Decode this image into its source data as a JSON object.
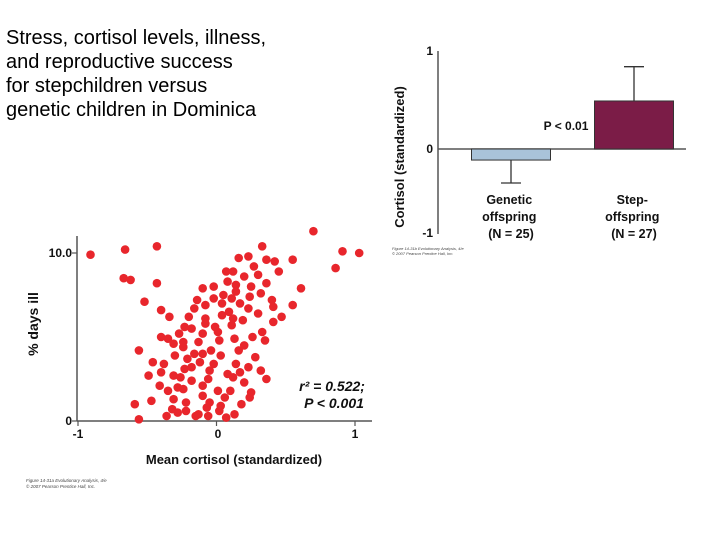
{
  "slide": {
    "title_lines": [
      "Stress, cortisol levels, illness,",
      "and reproductive success",
      "for stepchildren versus",
      "genetic children in Dominica"
    ]
  },
  "colors": {
    "scatter_point": "#e8262c",
    "genetic_bar": "#a9c3d9",
    "step_bar": "#7b1c47",
    "axis": "#555555"
  },
  "chart_data": [
    {
      "type": "bar",
      "categories": [
        "Genetic offspring (N = 25)",
        "Step-offspring (N = 27)"
      ],
      "category_lines": [
        [
          "Genetic",
          "offspring",
          "(N = 25)"
        ],
        [
          "Step-",
          "offspring",
          "(N = 27)"
        ]
      ],
      "values": [
        -0.13,
        0.49
      ],
      "error_bars": [
        [
          -0.4,
          -0.13
        ],
        [
          0.49,
          0.84
        ]
      ],
      "ylabel": "Cortisol (standardized)",
      "ylim": [
        -1,
        1
      ],
      "yticks": [
        "1",
        "0",
        "-1"
      ],
      "annotation": "P < 0.01",
      "credit_lines": [
        "Figure 14-31b  Evolutionary Analysis, 4/e",
        "© 2007 Pearson Prentice Hall, Inc."
      ]
    },
    {
      "type": "scatter",
      "xlabel": "Mean cortisol (standardized)",
      "ylabel": "% days ill",
      "xlim": [
        -1,
        1.2
      ],
      "ylim": [
        0,
        11
      ],
      "xticks": [
        "-1",
        "0",
        "1"
      ],
      "yticks": [
        "10.0",
        "0"
      ],
      "annotation_lines": [
        "r² = 0.522;",
        "P < 0.001"
      ],
      "credit_lines": [
        "Figure 14-31a  Evolutionary Analysis, 4/e",
        "© 2007 Pearson Prentice Hall, Inc."
      ],
      "points": [
        [
          -0.91,
          9.9
        ],
        [
          -0.66,
          10.2
        ],
        [
          -0.62,
          8.4
        ],
        [
          -0.67,
          8.5
        ],
        [
          -0.52,
          7.1
        ],
        [
          -0.56,
          4.2
        ],
        [
          -0.59,
          1.0
        ],
        [
          -0.31,
          4.6
        ],
        [
          -0.43,
          10.4
        ],
        [
          -0.43,
          8.2
        ],
        [
          -0.4,
          6.6
        ],
        [
          -0.34,
          6.2
        ],
        [
          -0.4,
          5.0
        ],
        [
          -0.46,
          3.5
        ],
        [
          -0.49,
          2.7
        ],
        [
          -0.56,
          0.1
        ],
        [
          -0.36,
          0.3
        ],
        [
          -0.28,
          0.5
        ],
        [
          -0.22,
          0.6
        ],
        [
          -0.13,
          0.4
        ],
        [
          -0.06,
          0.3
        ],
        [
          0.02,
          0.6
        ],
        [
          -0.31,
          1.3
        ],
        [
          -0.24,
          1.9
        ],
        [
          -0.31,
          2.7
        ],
        [
          -0.23,
          3.1
        ],
        [
          -0.24,
          4.4
        ],
        [
          -0.23,
          5.6
        ],
        [
          -0.16,
          6.7
        ],
        [
          -0.1,
          7.9
        ],
        [
          0.08,
          8.3
        ],
        [
          0.04,
          7.0
        ],
        [
          0.16,
          9.7
        ],
        [
          0.33,
          10.4
        ],
        [
          0.36,
          9.6
        ],
        [
          0.7,
          11.3
        ],
        [
          0.55,
          9.6
        ],
        [
          0.91,
          10.1
        ],
        [
          0.86,
          9.1
        ],
        [
          1.03,
          10.0
        ],
        [
          0.61,
          7.9
        ],
        [
          0.55,
          6.9
        ],
        [
          0.33,
          5.3
        ],
        [
          0.28,
          3.8
        ],
        [
          0.14,
          3.4
        ],
        [
          0.2,
          2.3
        ],
        [
          0.24,
          1.4
        ],
        [
          0.13,
          0.4
        ],
        [
          -0.05,
          1.1
        ],
        [
          0.01,
          1.8
        ],
        [
          -0.1,
          2.1
        ],
        [
          -0.05,
          3.0
        ],
        [
          0.03,
          3.9
        ],
        [
          0.02,
          4.8
        ],
        [
          -0.1,
          5.2
        ],
        [
          -0.08,
          6.1
        ],
        [
          0.09,
          6.5
        ],
        [
          0.11,
          5.7
        ],
        [
          0.17,
          7.0
        ],
        [
          0.25,
          8.0
        ],
        [
          0.36,
          8.2
        ],
        [
          0.4,
          7.2
        ],
        [
          0.3,
          6.4
        ],
        [
          0.41,
          5.9
        ],
        [
          0.35,
          4.8
        ],
        [
          0.2,
          4.5
        ],
        [
          -0.16,
          4.0
        ],
        [
          -0.04,
          4.2
        ],
        [
          -0.21,
          3.7
        ],
        [
          -0.38,
          3.4
        ],
        [
          -0.18,
          2.4
        ],
        [
          -0.28,
          2.0
        ],
        [
          -0.41,
          2.1
        ],
        [
          -0.47,
          1.2
        ],
        [
          -0.15,
          0.3
        ],
        [
          0.06,
          1.4
        ],
        [
          0.12,
          2.6
        ],
        [
          0.18,
          1.0
        ],
        [
          0.25,
          1.7
        ],
        [
          0.36,
          2.5
        ],
        [
          0.23,
          3.2
        ],
        [
          0.32,
          3.0
        ],
        [
          -0.12,
          3.5
        ],
        [
          -0.32,
          0.7
        ],
        [
          0.05,
          7.5
        ],
        [
          0.2,
          8.6
        ],
        [
          0.14,
          8.1
        ],
        [
          0.3,
          8.7
        ],
        [
          0.27,
          9.2
        ],
        [
          0.19,
          6.0
        ],
        [
          -0.01,
          5.6
        ],
        [
          -0.2,
          6.2
        ],
        [
          -0.27,
          5.2
        ],
        [
          -0.13,
          4.7
        ],
        [
          -0.35,
          4.9
        ],
        [
          0.08,
          2.8
        ],
        [
          0.16,
          4.2
        ],
        [
          -0.1,
          4.0
        ],
        [
          -0.08,
          5.8
        ],
        [
          0.04,
          6.3
        ],
        [
          0.11,
          7.3
        ],
        [
          -0.02,
          8.0
        ],
        [
          0.14,
          7.7
        ],
        [
          0.24,
          7.4
        ],
        [
          0.23,
          6.7
        ],
        [
          0.32,
          7.6
        ],
        [
          0.45,
          8.9
        ],
        [
          0.42,
          9.5
        ],
        [
          0.23,
          9.8
        ],
        [
          0.12,
          8.9
        ],
        [
          -0.08,
          6.9
        ],
        [
          0.01,
          5.3
        ],
        [
          0.26,
          5.0
        ],
        [
          0.13,
          4.9
        ],
        [
          -0.3,
          3.9
        ],
        [
          -0.4,
          2.9
        ],
        [
          -0.26,
          2.6
        ],
        [
          -0.06,
          2.5
        ],
        [
          -0.35,
          1.8
        ],
        [
          -0.1,
          1.5
        ],
        [
          0.03,
          0.9
        ],
        [
          -0.22,
          1.1
        ],
        [
          0.1,
          1.8
        ],
        [
          -0.18,
          5.5
        ],
        [
          0.17,
          2.9
        ],
        [
          -0.02,
          3.4
        ],
        [
          -0.24,
          4.7
        ],
        [
          -0.14,
          7.2
        ],
        [
          -0.02,
          7.3
        ],
        [
          0.07,
          8.9
        ],
        [
          0.41,
          6.8
        ],
        [
          0.47,
          6.2
        ],
        [
          0.12,
          6.1
        ],
        [
          -0.18,
          3.2
        ],
        [
          -0.07,
          0.8
        ],
        [
          0.07,
          0.2
        ]
      ]
    }
  ]
}
